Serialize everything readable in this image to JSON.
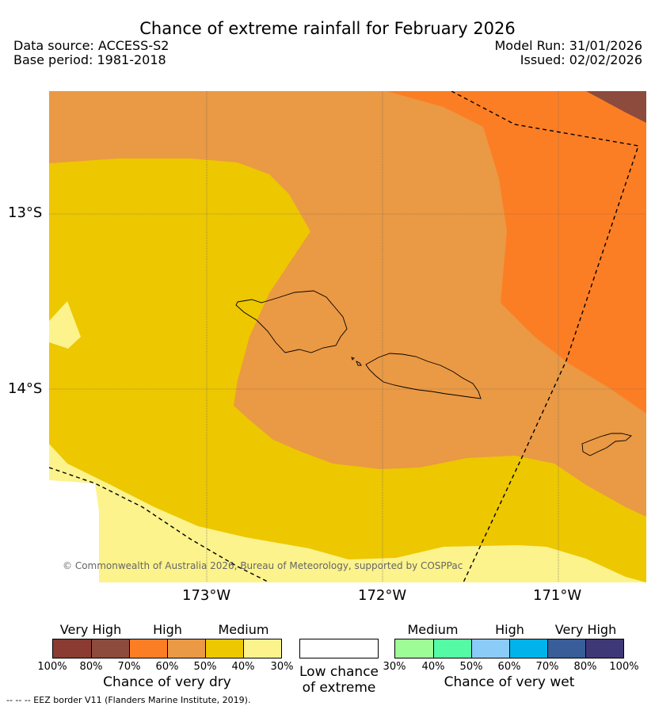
{
  "header": {
    "title": "Chance of extreme rainfall for February 2026",
    "data_source": "Data source: ACCESS-S2",
    "base_period": "Base period: 1981-2018",
    "model_run": "Model Run: 31/01/2026",
    "issued": "Issued: 02/02/2026"
  },
  "map": {
    "lat_labels": [
      "13°S",
      "14°S"
    ],
    "lon_labels": [
      "173°W",
      "172°W",
      "171°W"
    ],
    "copyright": "© Commonwealth of Australia 2026, Bureau of Meteorology, supported by COSPPac",
    "colors": {
      "very_dry_high": "#8b3b31",
      "very_dry_80": "#8c4b3c",
      "dry_high": "#fc7e24",
      "dry_60": "#ea9944",
      "dry_medium": "#edc700",
      "dry_30": "#fcf38c",
      "background": "#ffffff"
    }
  },
  "legend": {
    "dry": {
      "title": "Chance of very dry",
      "categories": [
        "Very High",
        "High",
        "Medium"
      ],
      "ticks": [
        "100%",
        "80%",
        "70%",
        "60%",
        "50%",
        "40%",
        "30%"
      ],
      "colors": [
        "#8b3b31",
        "#8c4b3c",
        "#fc7e24",
        "#ea9944",
        "#edc700",
        "#fcf38c"
      ]
    },
    "neutral": {
      "title_line1": "Low chance",
      "title_line2": "of extreme",
      "color": "#ffffff"
    },
    "wet": {
      "title": "Chance of very wet",
      "categories": [
        "Medium",
        "High",
        "Very High"
      ],
      "ticks": [
        "30%",
        "40%",
        "50%",
        "60%",
        "70%",
        "80%",
        "100%"
      ],
      "colors": [
        "#9efc96",
        "#55fba4",
        "#8bcbf8",
        "#00b3ea",
        "#385d99",
        "#3f3877"
      ]
    }
  },
  "footnote": "--  --  -- EEZ border V11 (Flanders Marine Institute, 2019)."
}
